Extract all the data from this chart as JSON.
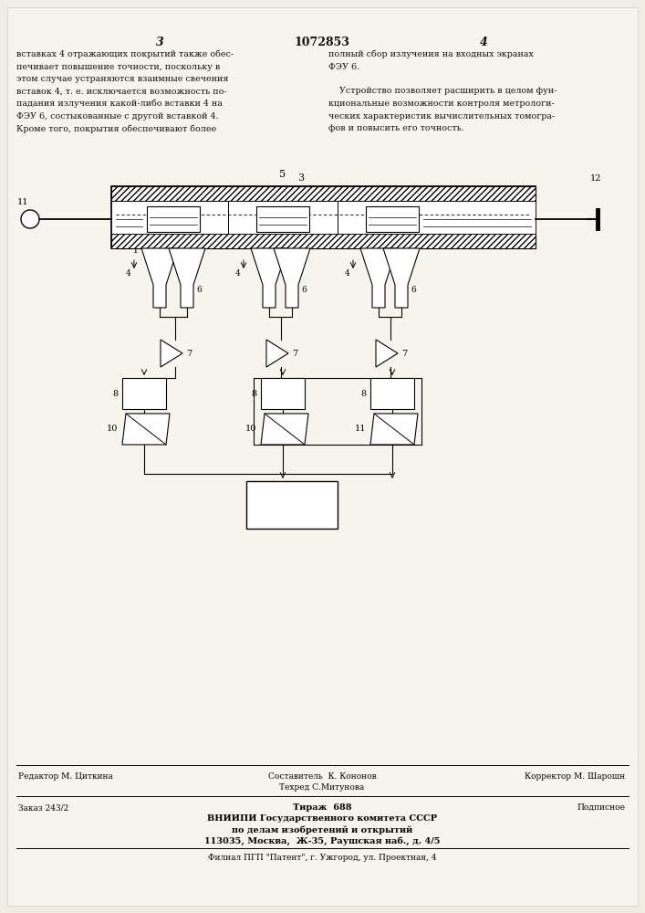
{
  "bg_color": "#e8e4dc",
  "title": "1072853",
  "page_left": "3",
  "page_right": "4",
  "text_left": [
    "вставках 4 отражающих покрытий также обес-",
    "печивает повышение точности, поскольку в",
    "этом случае устраняются взаимные свечения",
    "вставок 4, т. е. исключается возможность по-",
    "падания излучения какой-либо вставки 4 на",
    "ФЭУ 6, состыкованные с другой вставкой 4.",
    "Кроме того, покрытия обеспечивают более"
  ],
  "text_right": [
    "полный сбор излучения на входных экранах",
    "ФЭУ 6.",
    " ",
    "    Устройство позволяет расширить в целом фун-",
    "кциональные возможности контроля метрологи-",
    "ческих характеристик вычислительных томогра-",
    "фов и повысить его точность."
  ],
  "footer": {
    "line1_left": "Редактор М. Циткина",
    "line1_mid1": "Составитель  К. Кононов",
    "line1_mid2": "Техред С.Митунова",
    "line1_right": "Корректор М. Шарошн",
    "line2_left": "Заказ 243/2",
    "line2_mid": "Тираж  688",
    "line2_right": "Подписное",
    "line3": "ВНИИПИ Государственного комитета СССР",
    "line4": "по делам изобретений и открытий",
    "line5": "113035, Москва,  Ж-35, Раушская наб., д. 4/5",
    "line6": "Филиал ПГП \"Патент\", г. Ужгород, ул. Проектная, 4"
  }
}
